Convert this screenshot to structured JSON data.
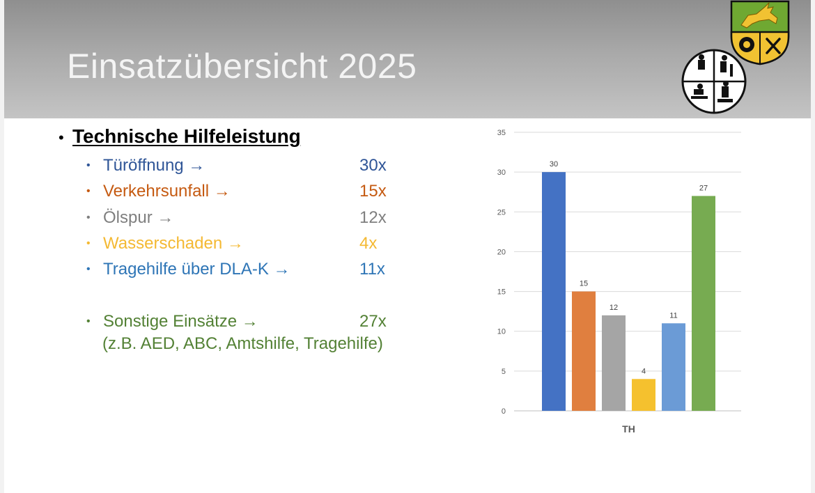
{
  "slide": {
    "title": "Einsatzübersicht 2025",
    "heading": "Technische Hilfeleistung",
    "items": [
      {
        "label": "Türöffnung →",
        "count": "30x",
        "color": "#2f5597"
      },
      {
        "label": "Verkehrsunfall →",
        "count": "15x",
        "color": "#c55a11"
      },
      {
        "label": "Ölspur →",
        "count": "12x",
        "color": "#7f7f7f"
      },
      {
        "label": "Wasserschaden →",
        "count": "4x",
        "color": "#f4b933"
      },
      {
        "label": "Tragehilfe über DLA-K →",
        "count": "11x",
        "color": "#2e75b6"
      },
      {
        "label": "Sonstige Einsätze →",
        "count": "27x",
        "color": "#538135"
      }
    ],
    "note": "(z.B. AED, ABC, Amtshilfe, Tragehilfe)"
  },
  "chart_data": {
    "type": "bar",
    "categories": [
      "TH"
    ],
    "series": [
      {
        "values": [
          30
        ],
        "color": "#4472c4"
      },
      {
        "values": [
          15
        ],
        "color": "#e07f3f"
      },
      {
        "values": [
          12
        ],
        "color": "#a5a5a5"
      },
      {
        "values": [
          4
        ],
        "color": "#f5c12e"
      },
      {
        "values": [
          11
        ],
        "color": "#6b9bd6"
      },
      {
        "values": [
          27
        ],
        "color": "#77ab51"
      }
    ],
    "yticks": [
      0,
      5,
      10,
      15,
      20,
      25,
      30,
      35
    ],
    "ylim": [
      0,
      35
    ],
    "grid": true,
    "xlabel": "",
    "ylabel": ""
  }
}
